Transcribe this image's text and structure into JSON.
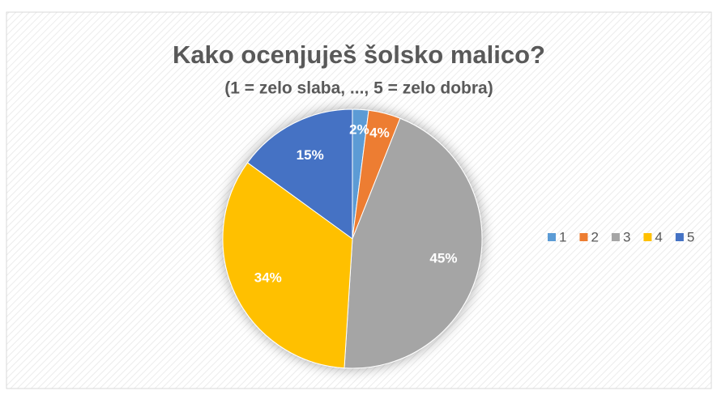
{
  "chart_data": {
    "type": "pie",
    "title": "Kako ocenjuješ šolsko malico?",
    "subtitle": "(1 = zelo slaba, ..., 5 = zelo dobra)",
    "categories": [
      "1",
      "2",
      "3",
      "4",
      "5"
    ],
    "values": [
      2,
      4,
      45,
      34,
      15
    ],
    "value_labels": [
      "2%",
      "4%",
      "45%",
      "34%",
      "15%"
    ],
    "colors": [
      "#5b9bd5",
      "#ed7d31",
      "#a5a5a5",
      "#ffc000",
      "#4472c4"
    ],
    "legend": "right"
  }
}
